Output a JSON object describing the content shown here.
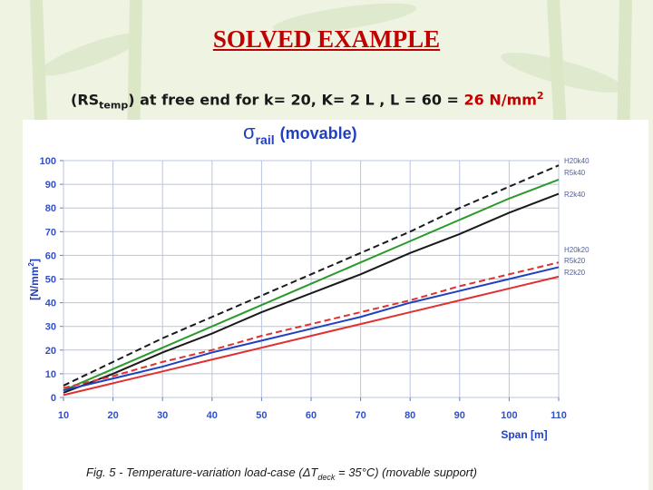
{
  "slide": {
    "title": "SOLVED EXAMPLE",
    "subtitle": {
      "p1": "(RS",
      "p2": "temp",
      "p3": ") at free end for k= 20, K= 2 L , L = 60 = ",
      "p4": "26 N/mm",
      "p5": "2"
    }
  },
  "chart_data": {
    "type": "line",
    "title": {
      "symbol": "σ",
      "sub": "rail",
      "rest": "(movable)"
    },
    "x_label": "Span [m]",
    "y_label": {
      "a": "[N/mm",
      "b": "2",
      "c": "]"
    },
    "caption": {
      "a": "Fig. 5 - Temperature-variation load-case (",
      "b": "ΔT",
      "c": "deck",
      "d": " = 35°C) (movable support)"
    },
    "x": [
      10,
      20,
      30,
      40,
      50,
      60,
      70,
      80,
      90,
      100,
      110
    ],
    "xlim": [
      10,
      110
    ],
    "xticks": [
      10,
      20,
      30,
      40,
      50,
      60,
      70,
      80,
      90,
      100,
      110
    ],
    "ylim": [
      0,
      100
    ],
    "yticks": [
      0,
      10,
      20,
      30,
      40,
      50,
      60,
      70,
      80,
      90,
      100
    ],
    "grid": true,
    "series": [
      {
        "name": "H20k40",
        "color": "#1a1a1a",
        "style": "dashed",
        "values": [
          5,
          15,
          25,
          34,
          43,
          52,
          61,
          70,
          80,
          89,
          98
        ]
      },
      {
        "name": "R5k40",
        "color": "#2a9a2a",
        "style": "solid",
        "values": [
          3,
          12,
          21,
          30,
          39,
          48,
          57,
          66,
          75,
          84,
          92
        ]
      },
      {
        "name": "R2k40",
        "color": "#1a1a1a",
        "style": "solid",
        "values": [
          2,
          10,
          19,
          27,
          36,
          44,
          52,
          61,
          69,
          78,
          86
        ]
      },
      {
        "name": "H20k20",
        "color": "#e03030",
        "style": "dashed",
        "values": [
          4,
          9,
          15,
          20,
          26,
          31,
          36,
          41,
          47,
          52,
          57
        ]
      },
      {
        "name": "R5k20",
        "color": "#2040c0",
        "style": "solid",
        "values": [
          3,
          8,
          13,
          19,
          24,
          29,
          34,
          40,
          45,
          50,
          55
        ]
      },
      {
        "name": "R2k20",
        "color": "#e03030",
        "style": "solid",
        "values": [
          1,
          6,
          11,
          16,
          21,
          26,
          31,
          36,
          41,
          46,
          51
        ]
      }
    ]
  }
}
